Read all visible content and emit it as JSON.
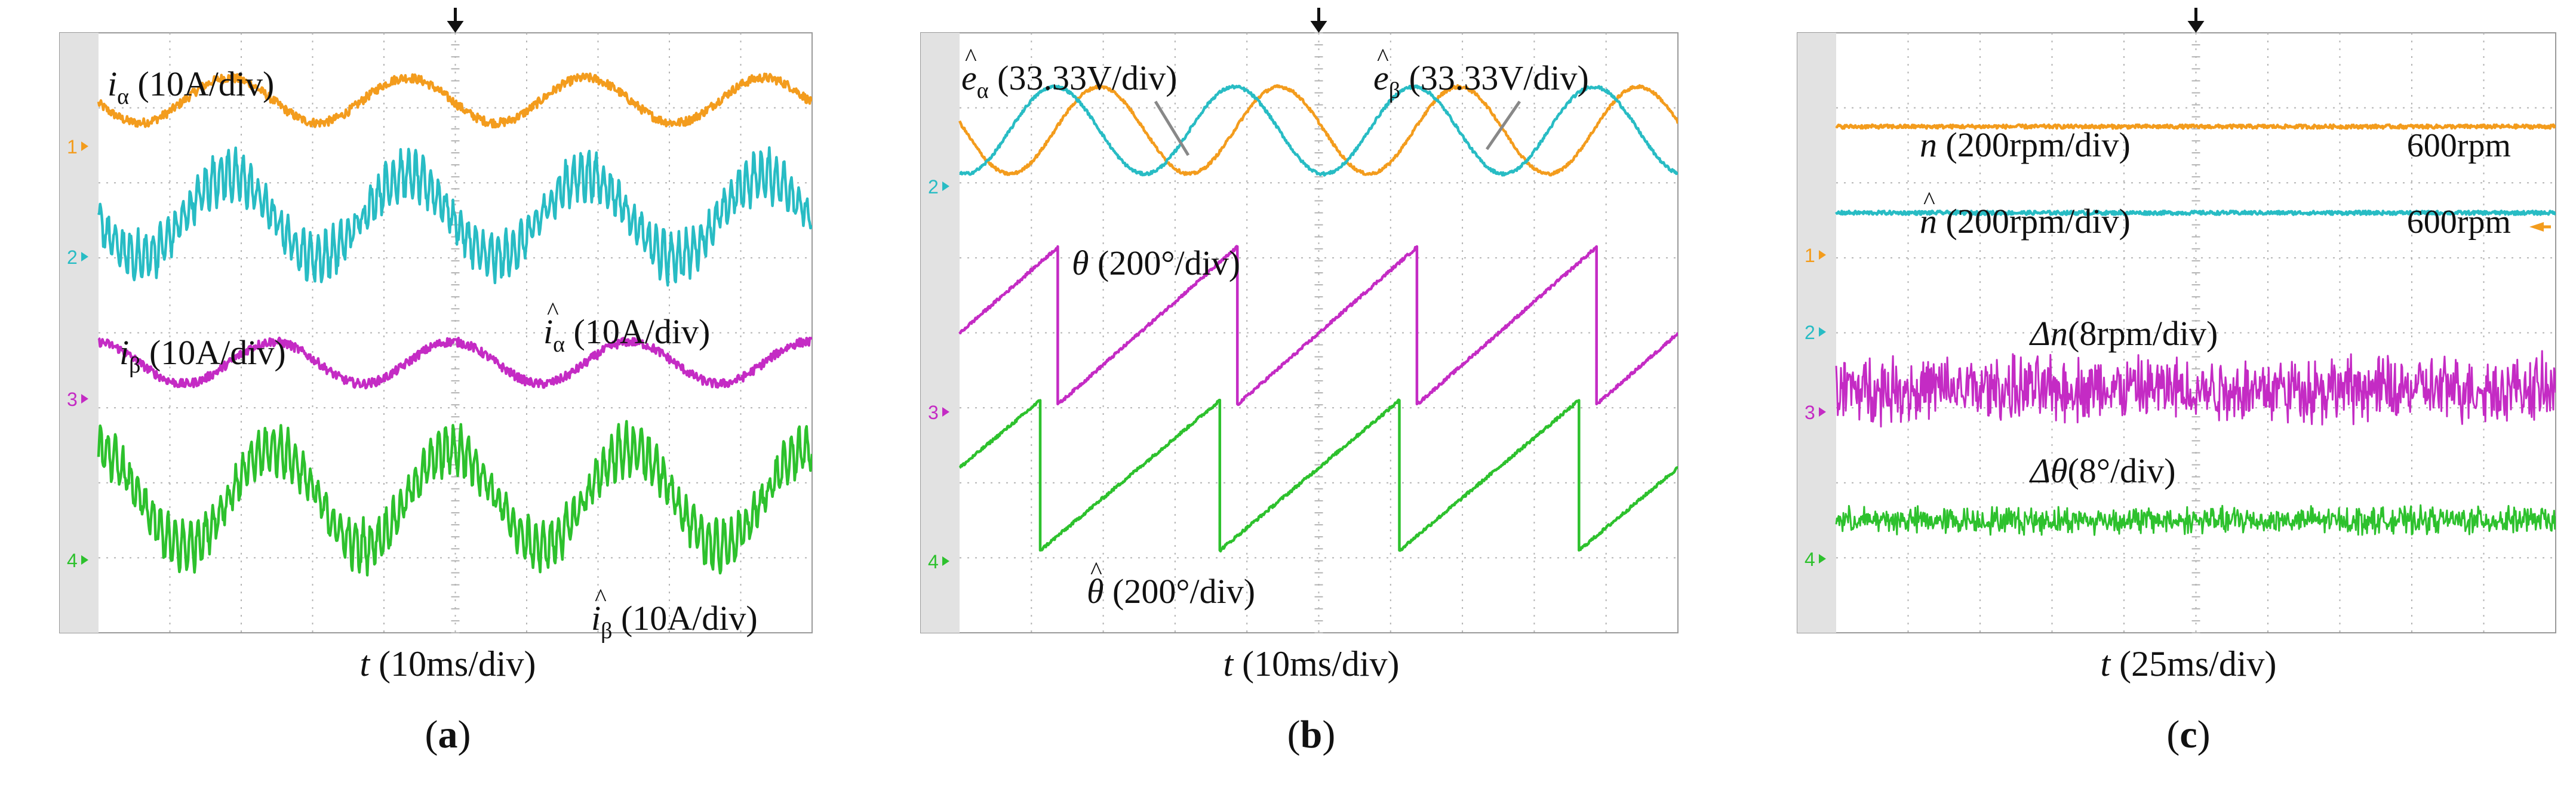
{
  "colors": {
    "ch1": "#f39c1d",
    "ch2": "#28bcc4",
    "ch3": "#c42bc4",
    "ch4": "#2dc12d",
    "grid": "#b4b4b4",
    "plot_bg": "#ffffff",
    "bezel": "#e2e2e2",
    "text": "#111111"
  },
  "chart_data": [
    {
      "type": "line",
      "panel_label": "(a)",
      "panel_letter": "a",
      "xlabel_var": "t",
      "xlabel_unit": " (10ms/div)",
      "x_range": [
        0,
        10
      ],
      "y_range": [
        -4,
        4
      ],
      "trigger_marker": "down-arrow",
      "channel_markers": [
        "1",
        "2",
        "3",
        "4"
      ],
      "series": [
        {
          "channel": "1",
          "var": "i",
          "sub": "α",
          "hat": false,
          "unit": " (10A/div)",
          "shape": "sine",
          "offset_div": 3.1,
          "amp_div": 0.3,
          "cycles": 4.0,
          "phase": 0.52,
          "noise_div": 0.06,
          "ripple_div": 0.0
        },
        {
          "channel": "2",
          "var": "i",
          "sub": "α",
          "hat": true,
          "unit": " (10A/div)",
          "shape": "sine",
          "offset_div": 1.55,
          "amp_div": 0.55,
          "cycles": 4.0,
          "phase": 0.52,
          "noise_div": 0.1,
          "ripple_div": 0.3
        },
        {
          "channel": "3",
          "var": "i",
          "sub": "β",
          "hat": false,
          "unit": " (10A/div)",
          "shape": "sine",
          "offset_div": -0.4,
          "amp_div": 0.28,
          "cycles": 4.0,
          "phase": 0.27,
          "noise_div": 0.06,
          "ripple_div": 0.0
        },
        {
          "channel": "4",
          "var": "i",
          "sub": "β",
          "hat": true,
          "unit": " (10A/div)",
          "shape": "sine",
          "offset_div": -2.2,
          "amp_div": 0.65,
          "cycles": 4.0,
          "phase": 0.27,
          "noise_div": 0.1,
          "ripple_div": 0.3
        }
      ]
    },
    {
      "type": "line",
      "panel_label": "(b)",
      "panel_letter": "b",
      "xlabel_var": "t",
      "xlabel_unit": " (10ms/div)",
      "x_range": [
        0,
        10
      ],
      "y_range": [
        -4,
        4
      ],
      "trigger_marker": "down-arrow",
      "channel_markers": [
        "2",
        "3",
        "4"
      ],
      "series": [
        {
          "channel": "1",
          "var": "e",
          "sub": "α",
          "hat": true,
          "unit": " (33.33V/div)",
          "shape": "sine",
          "offset_div": 2.7,
          "amp_div": 0.58,
          "cycles": 4.0,
          "phase": 0.47,
          "noise_div": 0.02,
          "ripple_div": 0.0
        },
        {
          "channel": "2",
          "var": "e",
          "sub": "β",
          "hat": true,
          "unit": " (33.33V/div)",
          "shape": "sine",
          "offset_div": 2.7,
          "amp_div": 0.58,
          "cycles": 4.0,
          "phase": 0.72,
          "noise_div": 0.02,
          "ripple_div": 0.0
        },
        {
          "channel": "3",
          "var": "θ",
          "sub": "",
          "hat": false,
          "unit": " (200°/div)",
          "shape": "sawtooth",
          "offset_div": 0.1,
          "amp_div": 1.05,
          "cycles": 4.0,
          "phase": 0.45,
          "noise_div": 0.02,
          "ripple_div": 0.0
        },
        {
          "channel": "4",
          "var": "θ",
          "sub": "",
          "hat": true,
          "unit": " (200°/div)",
          "shape": "sawtooth",
          "offset_div": -1.9,
          "amp_div": 1.0,
          "cycles": 4.0,
          "phase": 0.55,
          "noise_div": 0.02,
          "ripple_div": 0.0
        }
      ]
    },
    {
      "type": "line",
      "panel_label": "(c)",
      "panel_letter": "c",
      "xlabel_var": "t",
      "xlabel_unit": " (25ms/div)",
      "x_range": [
        0,
        10
      ],
      "y_range": [
        -4,
        4
      ],
      "trigger_marker": "down-arrow",
      "channel_markers": [
        "1",
        "2",
        "3",
        "4"
      ],
      "series": [
        {
          "channel": "1",
          "var": "n",
          "sub": "",
          "hat": false,
          "unit": " (200rpm/div)",
          "shape": "flat",
          "value_text": "600rpm",
          "offset_div": 2.75,
          "amp_div": 0.0,
          "cycles": 0,
          "phase": 0,
          "noise_div": 0.025,
          "ripple_div": 0.0
        },
        {
          "channel": "2",
          "var": "n",
          "sub": "",
          "hat": true,
          "unit": " (200rpm/div)",
          "shape": "flat",
          "value_text": "600rpm",
          "offset_div": 1.6,
          "amp_div": 0.0,
          "cycles": 0,
          "phase": 0,
          "noise_div": 0.025,
          "ripple_div": 0.0
        },
        {
          "channel": "3",
          "var": "Δn",
          "sub": "",
          "hat": false,
          "unit": "(8rpm/div)",
          "shape": "noise",
          "offset_div": -0.75,
          "amp_div": 0.0,
          "cycles": 0,
          "phase": 0,
          "noise_div": 0.32,
          "ripple_div": 0.0
        },
        {
          "channel": "4",
          "var": "Δθ",
          "sub": "",
          "hat": false,
          "unit": "(8°/div)",
          "shape": "noise",
          "offset_div": -2.5,
          "amp_div": 0.0,
          "cycles": 0,
          "phase": 0,
          "noise_div": 0.13,
          "ripple_div": 0.0
        }
      ]
    }
  ]
}
